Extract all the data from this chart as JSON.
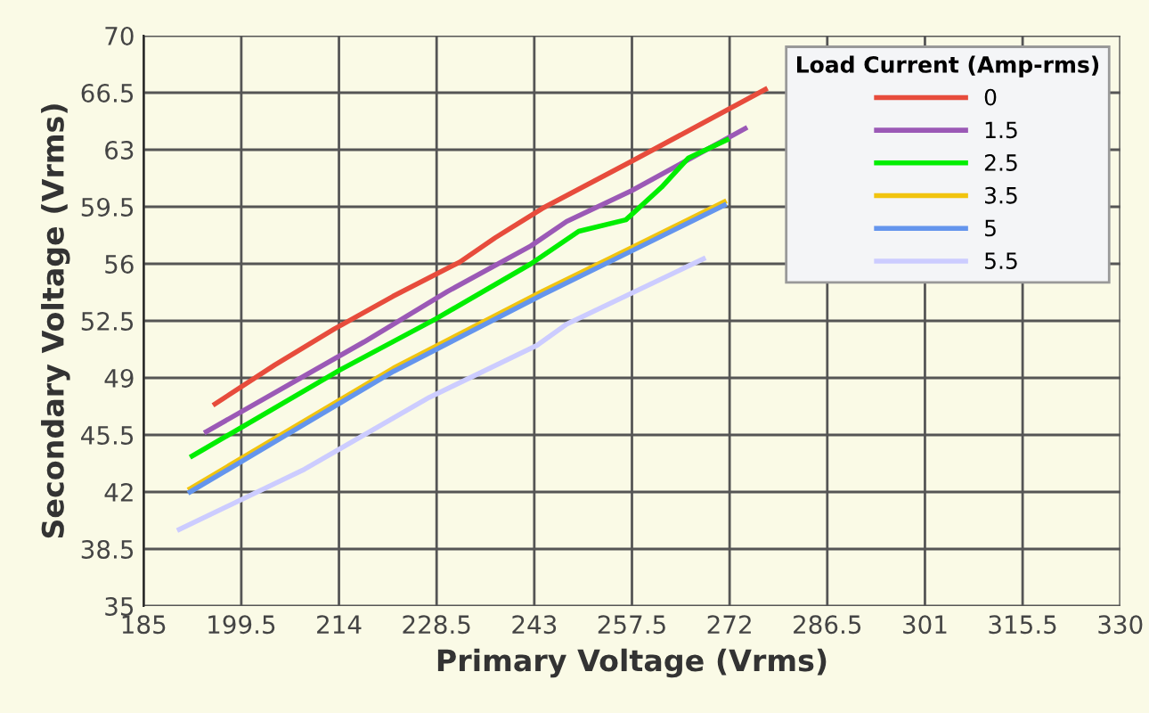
{
  "chart_data": {
    "type": "line",
    "xlabel": "Primary Voltage (Vrms)",
    "ylabel": "Secondary Voltage (Vrms)",
    "legend_title": "Load Current (Amp-rms)",
    "xlim": [
      185,
      330
    ],
    "xticks": [
      185,
      199.5,
      214,
      228.5,
      243,
      257.5,
      272,
      286.5,
      301,
      315.5,
      330
    ],
    "ylim": [
      35,
      70
    ],
    "yticks": [
      35,
      38.5,
      42,
      45.5,
      49,
      52.5,
      56,
      59.5,
      63,
      66.5,
      70
    ],
    "grid": true,
    "legend": "top right",
    "marker": "none",
    "line_style": "solid",
    "series": [
      {
        "name": "0",
        "color": "#e74c3c",
        "x": [
          195.6,
          204.5,
          213.3,
          222,
          231.9,
          237.2,
          244.2,
          257.5,
          277.3
        ],
        "values": [
          47.4,
          49.8,
          52.0,
          54.0,
          56.1,
          57.6,
          59.4,
          62.3,
          66.7
        ]
      },
      {
        "name": "1.5",
        "color": "#9b59b6",
        "x": [
          194.3,
          217.7,
          230.1,
          242.5,
          247.8,
          257.5,
          274.3
        ],
        "values": [
          45.7,
          51.2,
          54.3,
          57.1,
          58.6,
          60.5,
          64.3
        ]
      },
      {
        "name": "2.5",
        "color": "#00ee00",
        "x": [
          192.2,
          214.2,
          228.3,
          242.5,
          249.6,
          256.6,
          261.9,
          265.9,
          271.6
        ],
        "values": [
          44.2,
          49.5,
          52.6,
          56.0,
          58.0,
          58.7,
          60.7,
          62.5,
          63.6
        ]
      },
      {
        "name": "3.5",
        "color": "#f1c40f",
        "x": [
          191.9,
          222.1,
          244.2,
          257.5,
          271.2
        ],
        "values": [
          42.2,
          49.6,
          54.3,
          57.0,
          59.8
        ]
      },
      {
        "name": "5",
        "color": "#6495ed",
        "x": [
          191.9,
          222.1,
          244.2,
          257.5,
          271.2
        ],
        "values": [
          42.0,
          49.4,
          54.1,
          56.8,
          59.6
        ]
      },
      {
        "name": "5.5",
        "color": "#ccccff",
        "x": [
          190.3,
          208.9,
          227.4,
          243.4,
          247.8,
          268.1
        ],
        "values": [
          39.7,
          43.4,
          47.8,
          51.0,
          52.3,
          56.3
        ]
      }
    ]
  }
}
